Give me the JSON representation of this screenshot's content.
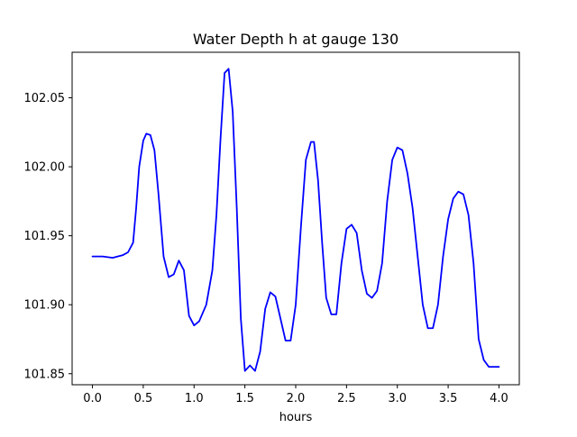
{
  "chart_data": {
    "type": "line",
    "title": "Water Depth h at gauge 130",
    "xlabel": "hours",
    "ylabel": "",
    "xlim": [
      -0.2,
      4.2
    ],
    "ylim": [
      101.842,
      102.083
    ],
    "xticks": [
      0.0,
      0.5,
      1.0,
      1.5,
      2.0,
      2.5,
      3.0,
      3.5,
      4.0
    ],
    "xtick_labels": [
      "0.0",
      "0.5",
      "1.0",
      "1.5",
      "2.0",
      "2.5",
      "3.0",
      "3.5",
      "4.0"
    ],
    "yticks": [
      101.85,
      101.9,
      101.95,
      102.0,
      102.05
    ],
    "ytick_labels": [
      "101.85",
      "101.90",
      "101.95",
      "102.00",
      "102.05"
    ],
    "grid": false,
    "series": [
      {
        "color": "#0000ff",
        "x": [
          0.0,
          0.1,
          0.2,
          0.3,
          0.35,
          0.4,
          0.43,
          0.46,
          0.5,
          0.53,
          0.57,
          0.61,
          0.65,
          0.7,
          0.75,
          0.8,
          0.85,
          0.9,
          0.95,
          1.0,
          1.05,
          1.12,
          1.18,
          1.22,
          1.26,
          1.3,
          1.34,
          1.38,
          1.42,
          1.46,
          1.5,
          1.55,
          1.6,
          1.65,
          1.7,
          1.75,
          1.8,
          1.85,
          1.9,
          1.95,
          2.0,
          2.05,
          2.1,
          2.15,
          2.18,
          2.22,
          2.26,
          2.3,
          2.35,
          2.4,
          2.45,
          2.5,
          2.55,
          2.6,
          2.65,
          2.7,
          2.75,
          2.8,
          2.85,
          2.9,
          2.95,
          3.0,
          3.05,
          3.1,
          3.15,
          3.2,
          3.25,
          3.3,
          3.35,
          3.4,
          3.45,
          3.5,
          3.55,
          3.6,
          3.65,
          3.7,
          3.75,
          3.8,
          3.85,
          3.9,
          3.95,
          4.0
        ],
        "y": [
          101.935,
          101.935,
          101.934,
          101.936,
          101.938,
          101.945,
          101.97,
          102.0,
          102.019,
          102.024,
          102.023,
          102.012,
          101.98,
          101.935,
          101.92,
          101.922,
          101.932,
          101.925,
          101.892,
          101.885,
          101.888,
          101.9,
          101.925,
          101.965,
          102.02,
          102.068,
          102.071,
          102.04,
          101.97,
          101.89,
          101.852,
          101.856,
          101.852,
          101.866,
          101.897,
          101.909,
          101.906,
          101.89,
          101.874,
          101.874,
          101.9,
          101.955,
          102.005,
          102.018,
          102.018,
          101.99,
          101.945,
          101.905,
          101.893,
          101.893,
          101.93,
          101.955,
          101.958,
          101.952,
          101.925,
          101.908,
          101.905,
          101.91,
          101.93,
          101.975,
          102.005,
          102.014,
          102.012,
          101.995,
          101.97,
          101.935,
          101.9,
          101.883,
          101.883,
          101.9,
          101.935,
          101.962,
          101.977,
          101.982,
          101.98,
          101.965,
          101.93,
          101.875,
          101.86,
          101.855,
          101.855,
          101.855
        ]
      }
    ]
  }
}
